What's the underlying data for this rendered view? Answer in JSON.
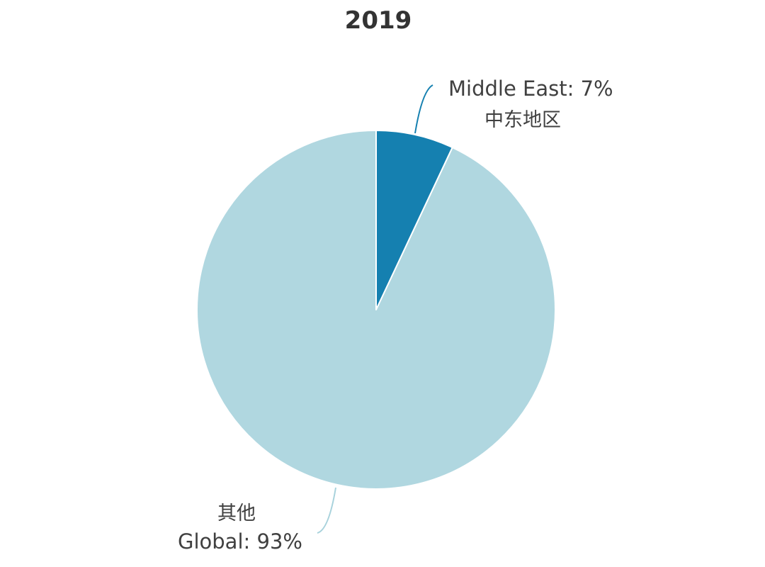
{
  "chart_data": {
    "type": "pie",
    "title": "2019",
    "slices": [
      {
        "label": "Middle East: 7%",
        "sublabel": "中东地区",
        "value": 7,
        "color": "#1580b0",
        "leader_color": "#1580b0"
      },
      {
        "label": "Global: 93%",
        "sublabel": "其他",
        "value": 93,
        "color": "#b0d7e0",
        "leader_color": "#a8d2dc"
      }
    ],
    "start_angle_deg": 0,
    "direction": "clockwise",
    "slice_border_color": "#ffffff"
  }
}
